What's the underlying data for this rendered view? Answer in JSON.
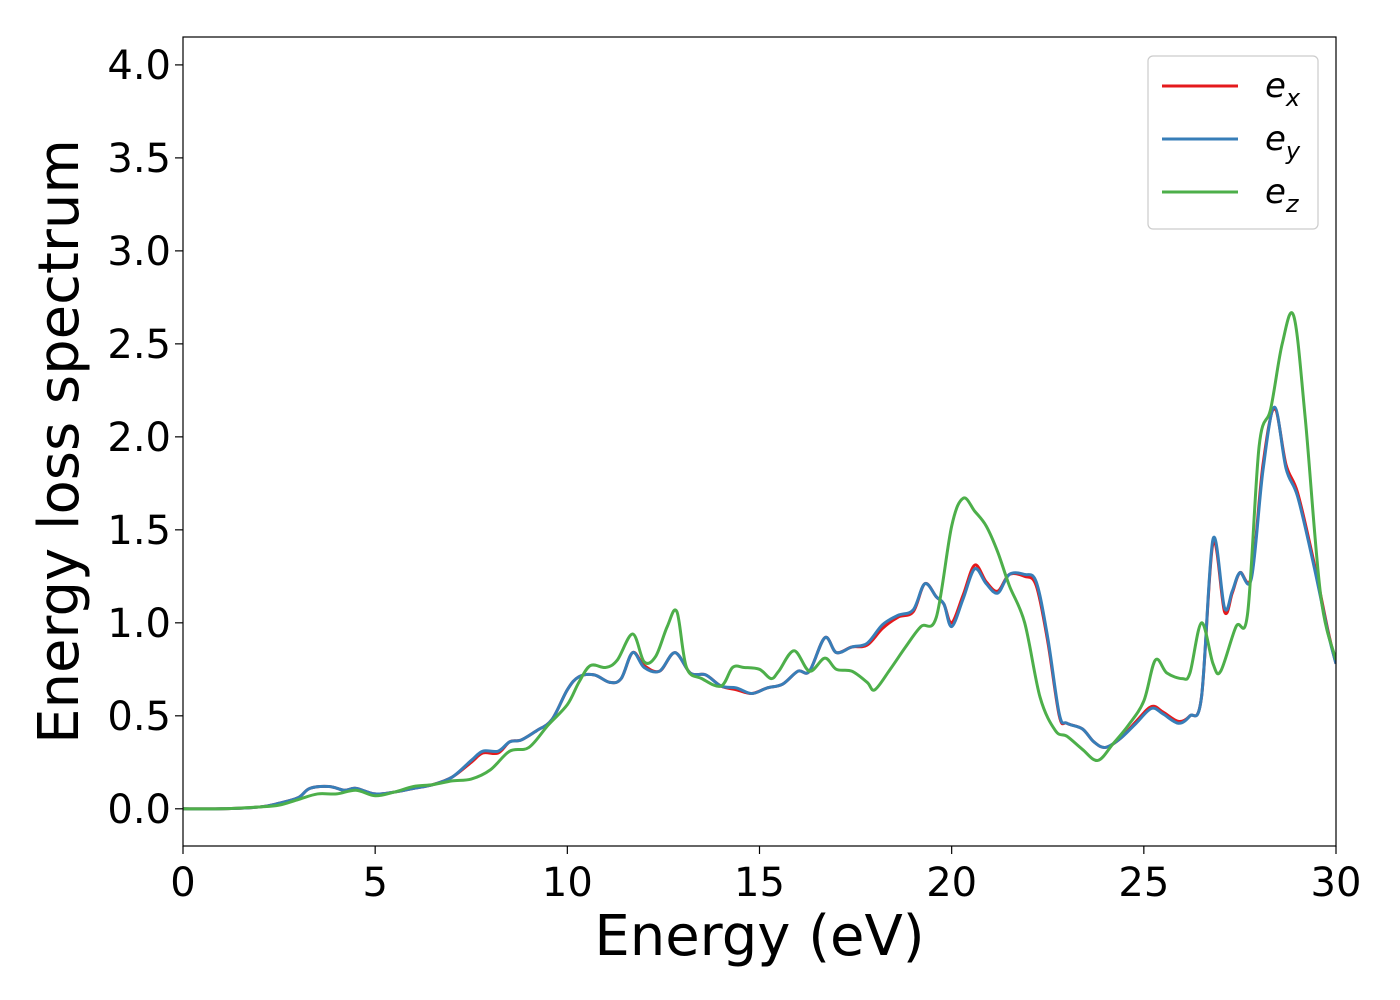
{
  "chart_data": {
    "type": "line",
    "title": "",
    "xlabel": "Energy (eV)",
    "ylabel": "Energy loss spectrum",
    "xlim": [
      0,
      30
    ],
    "ylim": [
      -0.2,
      4.15
    ],
    "xticks": [
      0,
      5,
      10,
      15,
      20,
      25,
      30
    ],
    "xtick_labels": [
      "0",
      "5",
      "10",
      "15",
      "20",
      "25",
      "30"
    ],
    "yticks": [
      0.0,
      0.5,
      1.0,
      1.5,
      2.0,
      2.5,
      3.0,
      3.5,
      4.0
    ],
    "ytick_labels": [
      "0.0",
      "0.5",
      "1.0",
      "1.5",
      "2.0",
      "2.5",
      "3.0",
      "3.5",
      "4.0"
    ],
    "grid": false,
    "legend_position": "top-right",
    "series": [
      {
        "name": "e_x",
        "label_base": "e",
        "label_sub": "x",
        "color": "#e41a1c",
        "x": [
          0,
          1,
          2,
          2.5,
          3,
          3.3,
          3.8,
          4.2,
          4.5,
          5,
          5.5,
          6,
          6.5,
          7,
          7.5,
          7.8,
          8.2,
          8.5,
          8.8,
          9.2,
          9.6,
          10,
          10.3,
          10.7,
          11.1,
          11.4,
          11.7,
          12,
          12.4,
          12.8,
          13.2,
          13.6,
          14,
          14.4,
          14.8,
          15.2,
          15.6,
          16,
          16.3,
          16.7,
          17,
          17.4,
          17.8,
          18.2,
          18.6,
          19,
          19.3,
          19.6,
          19.8,
          20,
          20.3,
          20.6,
          20.9,
          21.2,
          21.5,
          21.9,
          22.2,
          22.5,
          22.8,
          23,
          23.4,
          23.7,
          24,
          24.4,
          24.8,
          25.2,
          25.5,
          25.9,
          26.2,
          26.5,
          26.8,
          27.1,
          27.3,
          27.5,
          27.8,
          28.1,
          28.4,
          28.7,
          29,
          29.4,
          29.8,
          30
        ],
        "values": [
          0,
          0,
          0.01,
          0.03,
          0.06,
          0.11,
          0.12,
          0.1,
          0.11,
          0.08,
          0.09,
          0.11,
          0.13,
          0.17,
          0.25,
          0.3,
          0.3,
          0.36,
          0.37,
          0.42,
          0.48,
          0.64,
          0.71,
          0.72,
          0.68,
          0.7,
          0.84,
          0.77,
          0.74,
          0.84,
          0.73,
          0.72,
          0.66,
          0.64,
          0.62,
          0.65,
          0.67,
          0.74,
          0.74,
          0.92,
          0.84,
          0.87,
          0.88,
          0.97,
          1.03,
          1.06,
          1.21,
          1.14,
          1.1,
          1.0,
          1.15,
          1.31,
          1.22,
          1.17,
          1.26,
          1.25,
          1.2,
          0.9,
          0.5,
          0.46,
          0.43,
          0.36,
          0.33,
          0.38,
          0.47,
          0.55,
          0.52,
          0.47,
          0.5,
          0.6,
          1.43,
          1.06,
          1.16,
          1.27,
          1.25,
          1.85,
          2.15,
          1.85,
          1.7,
          1.35,
          0.95,
          0.78
        ]
      },
      {
        "name": "e_y",
        "label_base": "e",
        "label_sub": "y",
        "color": "#377eb8",
        "x": [
          0,
          1,
          2,
          2.5,
          3,
          3.3,
          3.8,
          4.2,
          4.5,
          5,
          5.5,
          6,
          6.5,
          7,
          7.5,
          7.8,
          8.2,
          8.5,
          8.8,
          9.2,
          9.6,
          10,
          10.3,
          10.7,
          11.1,
          11.4,
          11.7,
          12,
          12.4,
          12.8,
          13.2,
          13.6,
          14,
          14.4,
          14.8,
          15.2,
          15.6,
          16,
          16.3,
          16.7,
          17,
          17.4,
          17.8,
          18.2,
          18.6,
          19,
          19.3,
          19.6,
          19.8,
          20,
          20.3,
          20.6,
          20.9,
          21.2,
          21.5,
          21.9,
          22.2,
          22.5,
          22.8,
          23,
          23.4,
          23.7,
          24,
          24.4,
          24.8,
          25.2,
          25.5,
          25.9,
          26.2,
          26.5,
          26.8,
          27.1,
          27.3,
          27.5,
          27.8,
          28.1,
          28.4,
          28.7,
          29,
          29.4,
          29.8,
          30
        ],
        "values": [
          0,
          0,
          0.01,
          0.03,
          0.06,
          0.11,
          0.12,
          0.1,
          0.11,
          0.08,
          0.09,
          0.11,
          0.13,
          0.17,
          0.26,
          0.31,
          0.31,
          0.36,
          0.37,
          0.42,
          0.48,
          0.64,
          0.71,
          0.72,
          0.68,
          0.7,
          0.84,
          0.76,
          0.74,
          0.84,
          0.73,
          0.72,
          0.66,
          0.65,
          0.62,
          0.65,
          0.67,
          0.74,
          0.74,
          0.92,
          0.84,
          0.87,
          0.89,
          0.99,
          1.04,
          1.07,
          1.21,
          1.14,
          1.1,
          0.98,
          1.13,
          1.29,
          1.21,
          1.16,
          1.26,
          1.26,
          1.22,
          0.92,
          0.51,
          0.46,
          0.43,
          0.36,
          0.33,
          0.38,
          0.46,
          0.54,
          0.51,
          0.46,
          0.5,
          0.6,
          1.45,
          1.08,
          1.17,
          1.27,
          1.24,
          1.82,
          2.16,
          1.83,
          1.68,
          1.33,
          0.94,
          0.78
        ]
      },
      {
        "name": "e_z",
        "label_base": "e",
        "label_sub": "z",
        "color": "#4daf4a",
        "x": [
          0,
          1,
          2,
          2.5,
          3,
          3.5,
          4,
          4.5,
          5,
          5.5,
          6,
          6.5,
          7,
          7.5,
          8,
          8.5,
          9,
          9.5,
          10,
          10.3,
          10.6,
          11,
          11.3,
          11.7,
          12,
          12.3,
          12.6,
          12.85,
          13.1,
          13.5,
          14,
          14.3,
          14.6,
          15,
          15.3,
          15.5,
          15.9,
          16.3,
          16.7,
          17,
          17.4,
          17.8,
          18,
          18.4,
          18.8,
          19.2,
          19.6,
          20,
          20.3,
          20.6,
          20.9,
          21.2,
          21.5,
          21.9,
          22.3,
          22.7,
          23,
          23.4,
          23.8,
          24.2,
          24.6,
          25,
          25.3,
          25.6,
          26,
          26.2,
          26.5,
          26.8,
          27,
          27.4,
          27.7,
          28,
          28.3,
          28.6,
          28.9,
          29.2,
          29.6,
          30
        ],
        "values": [
          0,
          0,
          0.01,
          0.02,
          0.05,
          0.08,
          0.08,
          0.1,
          0.07,
          0.09,
          0.12,
          0.13,
          0.15,
          0.16,
          0.21,
          0.31,
          0.33,
          0.45,
          0.56,
          0.68,
          0.77,
          0.76,
          0.8,
          0.94,
          0.79,
          0.82,
          0.98,
          1.06,
          0.76,
          0.7,
          0.66,
          0.76,
          0.76,
          0.75,
          0.7,
          0.74,
          0.85,
          0.74,
          0.81,
          0.75,
          0.74,
          0.68,
          0.64,
          0.75,
          0.87,
          0.98,
          1.03,
          1.52,
          1.67,
          1.6,
          1.52,
          1.38,
          1.2,
          1.0,
          0.6,
          0.42,
          0.39,
          0.32,
          0.26,
          0.35,
          0.45,
          0.58,
          0.8,
          0.73,
          0.7,
          0.73,
          1.0,
          0.78,
          0.74,
          0.98,
          1.05,
          1.95,
          2.15,
          2.5,
          2.65,
          2.1,
          1.15,
          0.8
        ]
      }
    ]
  }
}
